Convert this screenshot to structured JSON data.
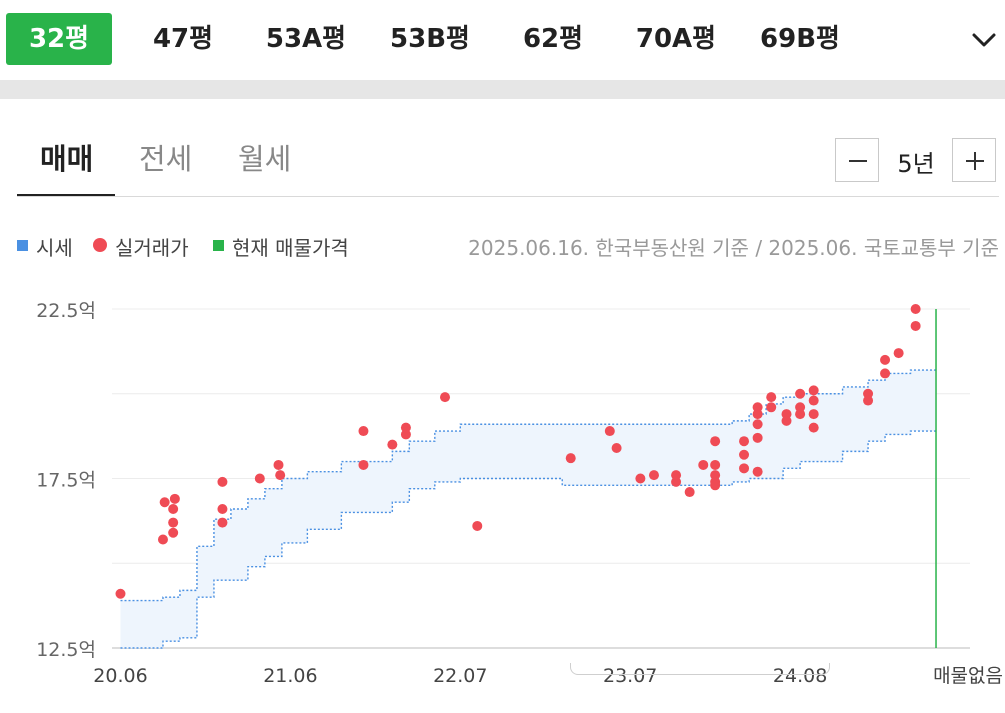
{
  "size_tabs": {
    "items": [
      "32평",
      "47평",
      "53A평",
      "53B평",
      "62평",
      "70A평",
      "69B평"
    ],
    "selected": "32평"
  },
  "deal_tabs": {
    "items": [
      "매매",
      "전세",
      "월세"
    ],
    "selected": "매매"
  },
  "period": {
    "value": "5년",
    "decrease_icon": "minus-icon",
    "increase_icon": "plus-icon"
  },
  "legend": {
    "items": [
      {
        "label": "시세",
        "marker": "square",
        "color": "#4a90e2"
      },
      {
        "label": "실거래가",
        "marker": "circle",
        "color": "#ef4b55"
      },
      {
        "label": "현재 매물가격",
        "marker": "square",
        "color": "#29b34a"
      }
    ]
  },
  "basis_note": "2025.06.16. 한국부동산원 기준 / 2025.06. 국토교통부 기준",
  "colors": {
    "accent": "#29b34a",
    "deal": "#ef4b55",
    "band_line": "#4a90e2",
    "band_fill": "#eef5fd"
  },
  "chart_data": {
    "type": "scatter",
    "x_unit": "year",
    "y_unit": "억",
    "xlim": [
      2020.45,
      2025.5
    ],
    "ylim": [
      12.5,
      22.5
    ],
    "y_ticks": [
      12.5,
      17.5,
      22.5
    ],
    "y_tick_labels": [
      "12.5억",
      "17.5억",
      "22.5억"
    ],
    "x_ticks": [
      2020.5,
      2021.5,
      2022.5,
      2023.5,
      2024.5
    ],
    "x_tick_labels": [
      "20.06",
      "21.06",
      "22.07",
      "23.07",
      "24.08"
    ],
    "end_label": "매물없음",
    "grid": "horizontal",
    "series": [
      {
        "name": "시세",
        "type": "step-band",
        "x": [
          2020.5,
          2020.75,
          2020.85,
          2020.95,
          2021.05,
          2021.15,
          2021.25,
          2021.35,
          2021.45,
          2021.6,
          2021.8,
          2022.0,
          2022.1,
          2022.2,
          2022.35,
          2022.5,
          2022.9,
          2023.1,
          2023.25,
          2023.35,
          2023.5,
          2023.7,
          2023.9,
          2024.0,
          2024.1,
          2024.2,
          2024.3,
          2024.4,
          2024.5,
          2024.6,
          2024.75,
          2024.9,
          2025.0,
          2025.15,
          2025.3
        ],
        "upper": [
          13.9,
          14.0,
          14.2,
          15.5,
          16.3,
          16.6,
          16.9,
          17.2,
          17.5,
          17.7,
          18.0,
          18.0,
          18.3,
          18.6,
          18.9,
          19.1,
          19.1,
          19.1,
          19.1,
          19.1,
          19.1,
          19.1,
          19.1,
          19.1,
          19.2,
          19.4,
          19.7,
          19.9,
          20.0,
          20.0,
          20.2,
          20.4,
          20.6,
          20.7,
          20.7
        ],
        "lower": [
          12.5,
          12.7,
          12.8,
          14.0,
          14.5,
          14.5,
          14.9,
          15.2,
          15.6,
          16.0,
          16.5,
          16.5,
          16.8,
          17.2,
          17.4,
          17.5,
          17.5,
          17.3,
          17.3,
          17.3,
          17.3,
          17.3,
          17.3,
          17.3,
          17.4,
          17.5,
          17.5,
          17.8,
          18.0,
          18.0,
          18.3,
          18.6,
          18.8,
          18.9,
          18.9
        ]
      },
      {
        "name": "실거래가",
        "type": "scatter",
        "x": [
          2020.5,
          2020.75,
          2020.76,
          2020.81,
          2020.81,
          2020.81,
          2020.82,
          2021.1,
          2021.1,
          2021.1,
          2021.32,
          2021.43,
          2021.44,
          2021.93,
          2021.93,
          2022.1,
          2022.18,
          2022.18,
          2022.41,
          2022.6,
          2023.15,
          2023.38,
          2023.42,
          2023.56,
          2023.64,
          2023.77,
          2023.77,
          2023.85,
          2023.93,
          2024.0,
          2024.0,
          2024.0,
          2024.0,
          2024.0,
          2024.17,
          2024.17,
          2024.17,
          2024.25,
          2024.25,
          2024.25,
          2024.25,
          2024.25,
          2024.33,
          2024.33,
          2024.42,
          2024.42,
          2024.5,
          2024.5,
          2024.5,
          2024.58,
          2024.58,
          2024.58,
          2024.58,
          2024.9,
          2024.9,
          2025.0,
          2025.0,
          2025.08,
          2025.18,
          2025.18
        ],
        "values": [
          14.1,
          15.7,
          16.8,
          16.6,
          16.2,
          15.9,
          16.9,
          17.4,
          16.6,
          16.2,
          17.5,
          17.9,
          17.6,
          18.9,
          17.9,
          18.5,
          18.8,
          19.0,
          19.9,
          16.1,
          18.1,
          18.9,
          18.4,
          17.5,
          17.6,
          17.4,
          17.6,
          17.1,
          17.9,
          18.6,
          17.9,
          17.6,
          17.4,
          17.3,
          18.6,
          18.2,
          17.8,
          19.6,
          19.4,
          19.1,
          18.7,
          17.7,
          19.9,
          19.6,
          19.4,
          19.2,
          19.6,
          19.4,
          20.0,
          20.1,
          19.8,
          19.4,
          19.0,
          20.0,
          19.8,
          21.0,
          20.6,
          21.2,
          22.5,
          22.0
        ]
      },
      {
        "name": "현재 매물가격",
        "type": "vline",
        "x": 2025.3
      }
    ]
  }
}
